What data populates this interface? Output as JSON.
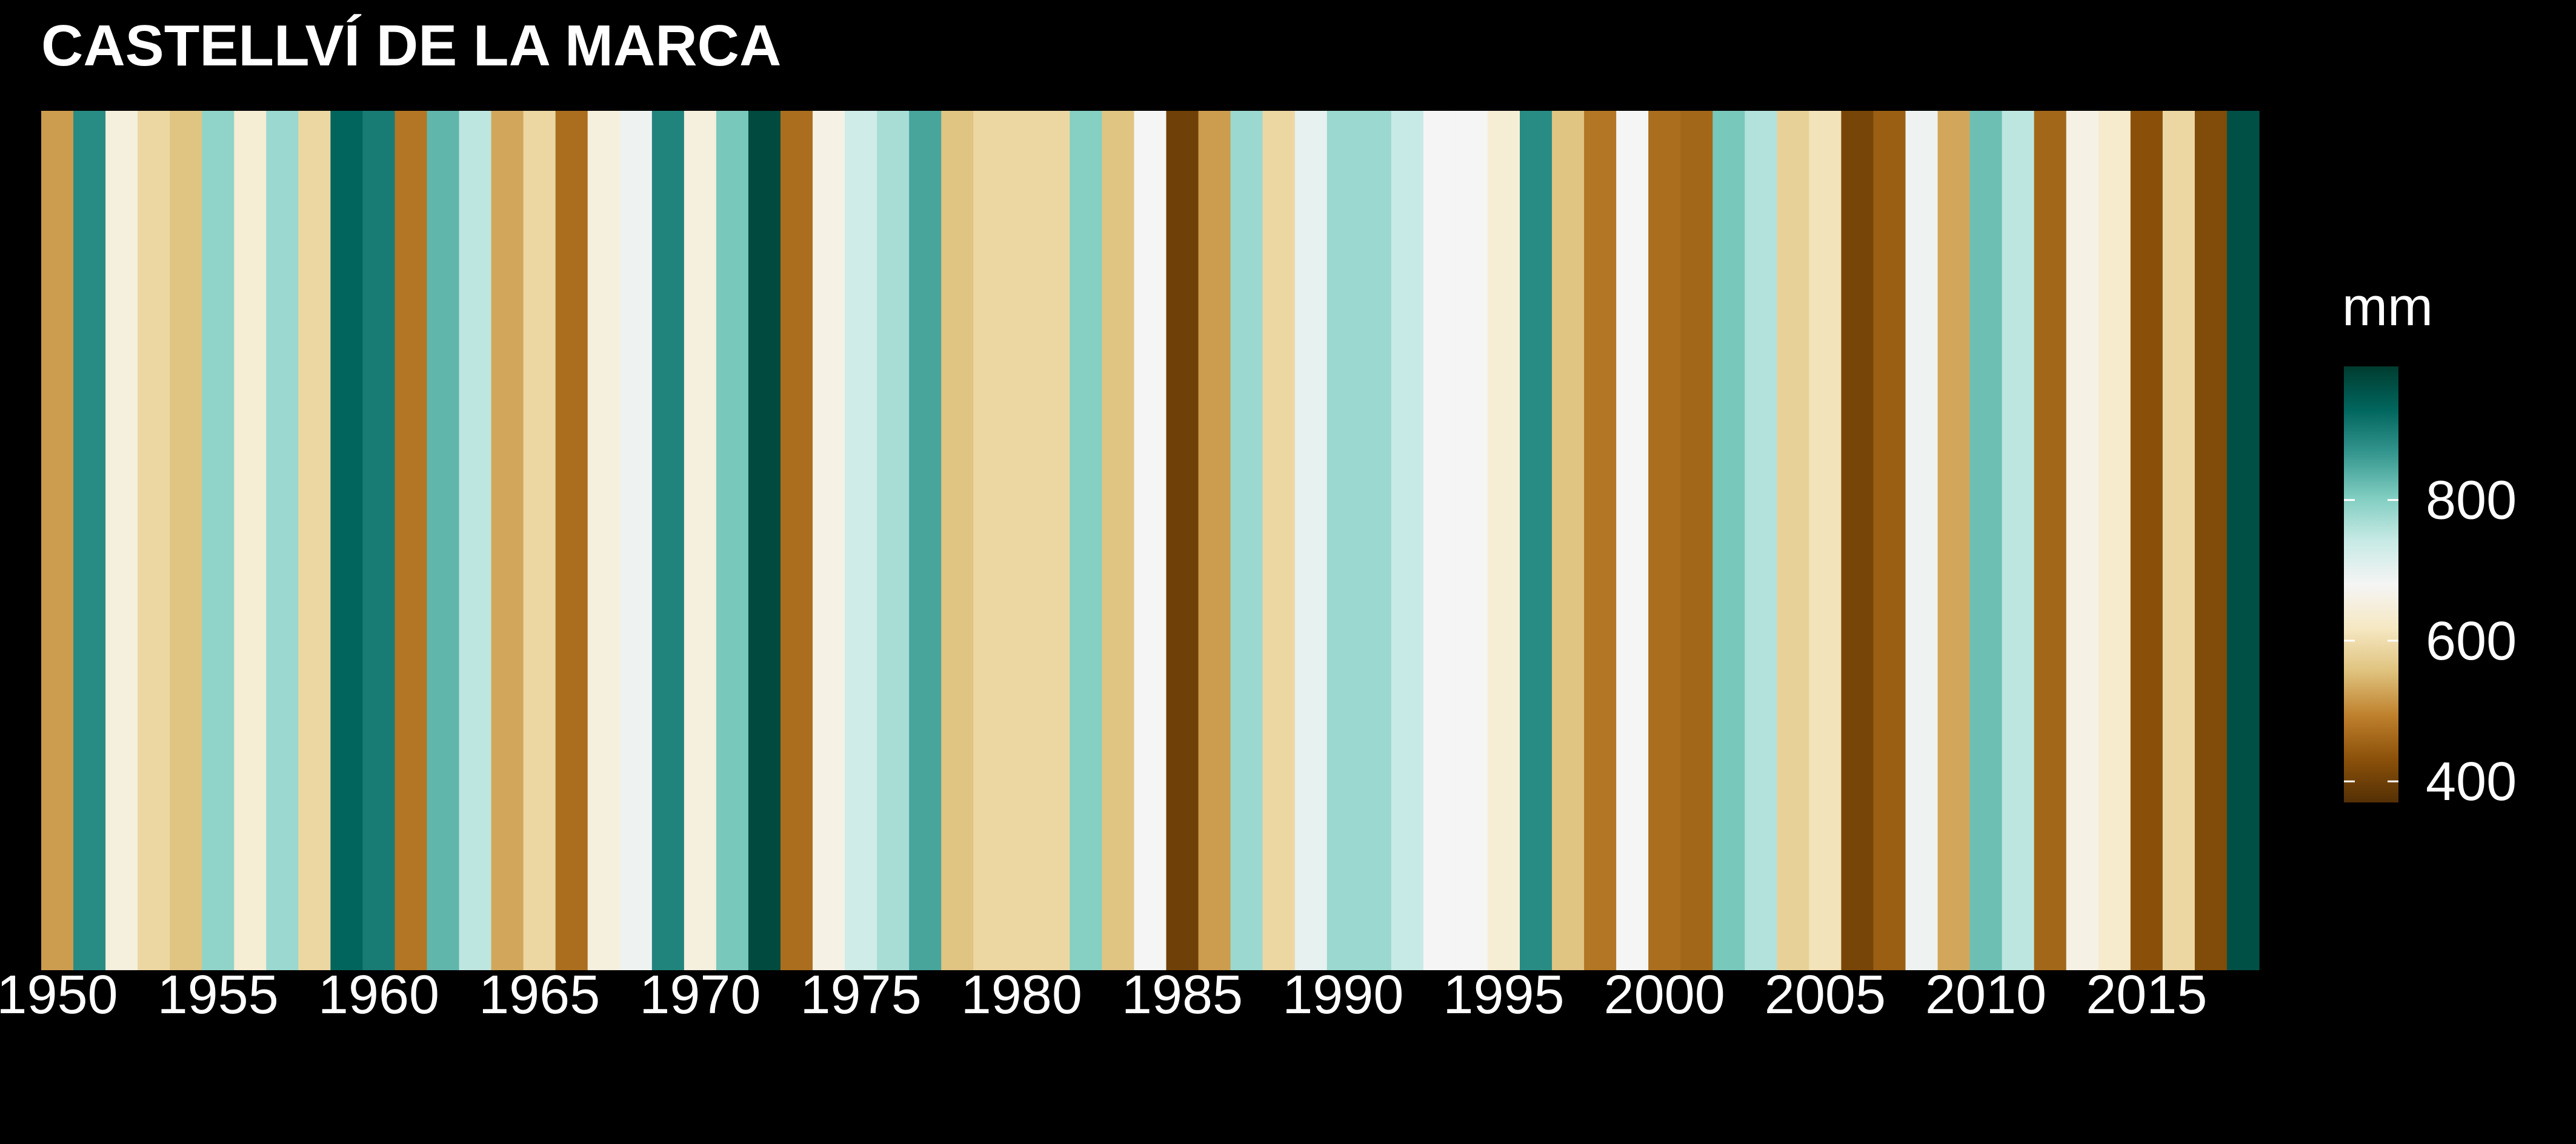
{
  "chart_data": {
    "type": "heatmap",
    "title": "CASTELLVÍ DE LA MARCA",
    "xlabel": "",
    "ylabel": "",
    "x": [
      1950,
      1951,
      1952,
      1953,
      1954,
      1955,
      1956,
      1957,
      1958,
      1959,
      1960,
      1961,
      1962,
      1963,
      1964,
      1965,
      1966,
      1967,
      1968,
      1969,
      1970,
      1971,
      1972,
      1973,
      1974,
      1975,
      1976,
      1977,
      1978,
      1979,
      1980,
      1981,
      1982,
      1983,
      1984,
      1985,
      1986,
      1987,
      1988,
      1989,
      1990,
      1991,
      1992,
      1993,
      1994,
      1995,
      1996,
      1997,
      1998,
      1999,
      2000,
      2001,
      2002,
      2003,
      2004,
      2005,
      2006,
      2007,
      2008,
      2009,
      2010,
      2011,
      2012,
      2013,
      2014,
      2015,
      2016,
      2017,
      2018
    ],
    "values": [
      520,
      880,
      650,
      590,
      560,
      790,
      640,
      780,
      590,
      930,
      900,
      480,
      830,
      750,
      530,
      590,
      470,
      650,
      690,
      890,
      650,
      810,
      970,
      470,
      660,
      730,
      770,
      850,
      560,
      590,
      590,
      590,
      800,
      560,
      680,
      400,
      520,
      780,
      590,
      700,
      780,
      780,
      740,
      680,
      680,
      640,
      880,
      560,
      480,
      680,
      470,
      460,
      810,
      760,
      580,
      610,
      410,
      450,
      690,
      530,
      820,
      750,
      460,
      660,
      630,
      430,
      590,
      420,
      960
    ],
    "xticks": [
      1950,
      1955,
      1960,
      1965,
      1970,
      1975,
      1980,
      1985,
      1990,
      1995,
      2000,
      2005,
      2010,
      2015
    ],
    "legend": {
      "title": "mm",
      "ticks": [
        400,
        600,
        800
      ],
      "range": [
        370,
        990
      ],
      "placement": "right"
    },
    "colorscale": [
      "#543005",
      "#8c510a",
      "#bf812d",
      "#dfc27d",
      "#f6e8c3",
      "#f5f5f5",
      "#c7eae5",
      "#80cdc1",
      "#35978f",
      "#01665e",
      "#003c30"
    ],
    "grid": false
  }
}
